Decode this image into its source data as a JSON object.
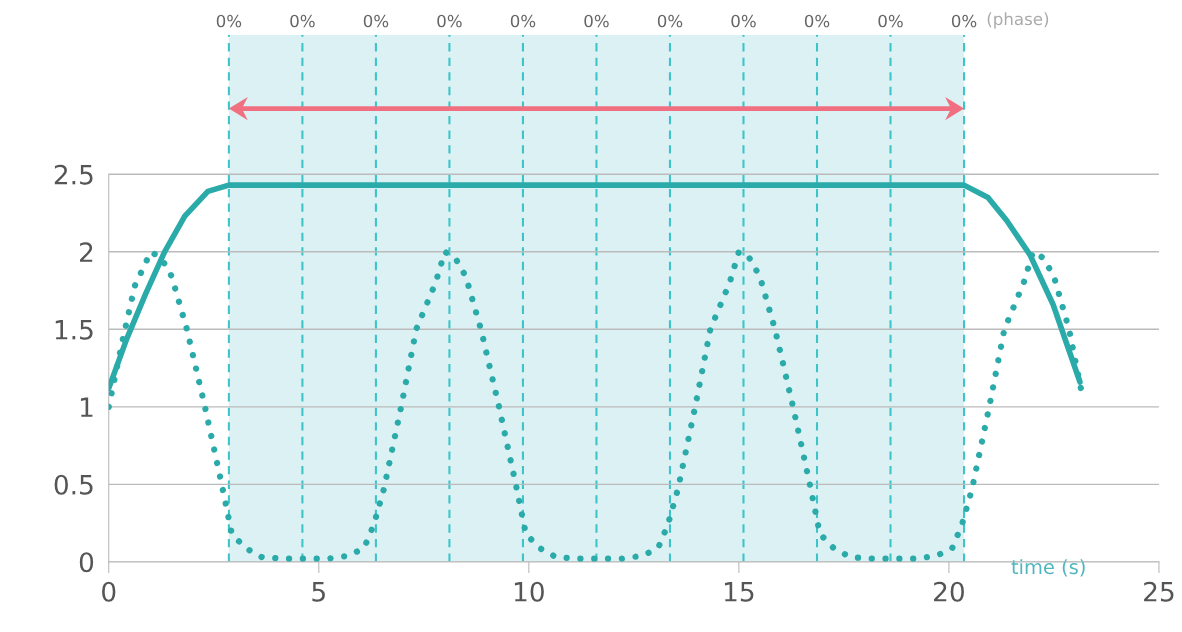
{
  "chart_data": {
    "type": "line",
    "xlabel": "time (s)",
    "xlim": [
      0,
      25
    ],
    "xticks": [
      0,
      5,
      10,
      15,
      20,
      25
    ],
    "ylim": [
      0,
      3.4
    ],
    "yticks": [
      0,
      0.5,
      1,
      1.5,
      2,
      2.5
    ],
    "grid": "y",
    "legend": false,
    "marker": "none",
    "series": [
      {
        "color": "#2aaaa8",
        "line_style": "solid",
        "x": [
          0,
          0.43,
          0.88,
          1.33,
          1.81,
          2.36,
          2.86,
          20.36,
          20.93,
          21.38,
          21.93,
          22.48,
          23.12
        ],
        "values": [
          1.12,
          1.44,
          1.73,
          2.0,
          2.23,
          2.39,
          2.43,
          2.43,
          2.35,
          2.2,
          1.98,
          1.66,
          1.16
        ]
      },
      {
        "color": "#2aaaa8",
        "line_style": "dotted",
        "x": [
          0,
          0.33,
          0.62,
          1.0,
          1.25,
          1.5,
          1.86,
          2.29,
          2.69,
          2.93,
          3.25,
          3.65,
          4.2,
          4.7,
          5.2,
          5.72,
          6.08,
          6.31,
          6.55,
          6.96,
          7.32,
          7.78,
          8.0,
          8.25,
          8.5,
          8.86,
          9.29,
          9.69,
          9.93,
          10.25,
          10.65,
          11.2,
          11.7,
          12.2,
          12.72,
          13.08,
          13.31,
          13.55,
          13.96,
          14.32,
          14.78,
          15.0,
          15.25,
          15.5,
          15.86,
          16.29,
          16.69,
          16.93,
          17.25,
          17.65,
          18.2,
          18.7,
          19.2,
          19.72,
          20.08,
          20.31,
          20.55,
          20.96,
          21.32,
          21.78,
          22.0,
          22.25,
          22.5,
          22.86,
          23.17
        ],
        "values": [
          1.0,
          1.43,
          1.78,
          2.0,
          1.96,
          1.84,
          1.5,
          1.0,
          0.5,
          0.18,
          0.09,
          0.03,
          0.02,
          0.02,
          0.02,
          0.04,
          0.09,
          0.24,
          0.47,
          1.0,
          1.5,
          1.8,
          2.0,
          1.96,
          1.84,
          1.5,
          1.0,
          0.5,
          0.18,
          0.09,
          0.03,
          0.02,
          0.02,
          0.02,
          0.04,
          0.09,
          0.24,
          0.47,
          1.0,
          1.5,
          1.8,
          2.0,
          1.96,
          1.84,
          1.5,
          1.0,
          0.5,
          0.18,
          0.09,
          0.03,
          0.02,
          0.02,
          0.02,
          0.04,
          0.09,
          0.24,
          0.47,
          1.0,
          1.5,
          1.8,
          2.0,
          1.96,
          1.84,
          1.5,
          1.08
        ]
      }
    ],
    "bands": [
      {
        "axis": "x",
        "from": 2.86,
        "to": 20.36,
        "color": "#dcf1f4"
      }
    ],
    "ref_lines": [
      {
        "axis": "x",
        "value": 2.86,
        "color": "#3cc4c8",
        "line_style": "dashed"
      },
      {
        "axis": "x",
        "value": 4.61,
        "color": "#3cc4c8",
        "line_style": "dashed"
      },
      {
        "axis": "x",
        "value": 6.36,
        "color": "#3cc4c8",
        "line_style": "dashed"
      },
      {
        "axis": "x",
        "value": 8.11,
        "color": "#3cc4c8",
        "line_style": "dashed"
      },
      {
        "axis": "x",
        "value": 9.86,
        "color": "#3cc4c8",
        "line_style": "dashed"
      },
      {
        "axis": "x",
        "value": 11.61,
        "color": "#3cc4c8",
        "line_style": "dashed"
      },
      {
        "axis": "x",
        "value": 13.36,
        "color": "#3cc4c8",
        "line_style": "dashed"
      },
      {
        "axis": "x",
        "value": 15.11,
        "color": "#3cc4c8",
        "line_style": "dashed"
      },
      {
        "axis": "x",
        "value": 16.86,
        "color": "#3cc4c8",
        "line_style": "dashed"
      },
      {
        "axis": "x",
        "value": 18.61,
        "color": "#3cc4c8",
        "line_style": "dashed"
      },
      {
        "axis": "x",
        "value": 20.36,
        "color": "#3cc4c8",
        "line_style": "dashed"
      }
    ],
    "annotations": [
      "(phase)",
      {
        "text": "0%",
        "x": 2.86,
        "y": 3.4
      },
      {
        "text": "0%",
        "x": 4.61,
        "y": 3.4
      },
      {
        "text": "0%",
        "x": 6.36,
        "y": 3.4
      },
      {
        "text": "0%",
        "x": 8.11,
        "y": 3.4
      },
      {
        "text": "0%",
        "x": 9.86,
        "y": 3.4
      },
      {
        "text": "0%",
        "x": 11.61,
        "y": 3.4
      },
      {
        "text": "0%",
        "x": 13.36,
        "y": 3.4
      },
      {
        "text": "0%",
        "x": 15.11,
        "y": 3.4
      },
      {
        "text": "0%",
        "x": 16.86,
        "y": 3.4
      },
      {
        "text": "0%",
        "x": 18.61,
        "y": 3.4
      },
      {
        "text": "0%",
        "x": 20.36,
        "y": 3.4
      }
    ]
  }
}
